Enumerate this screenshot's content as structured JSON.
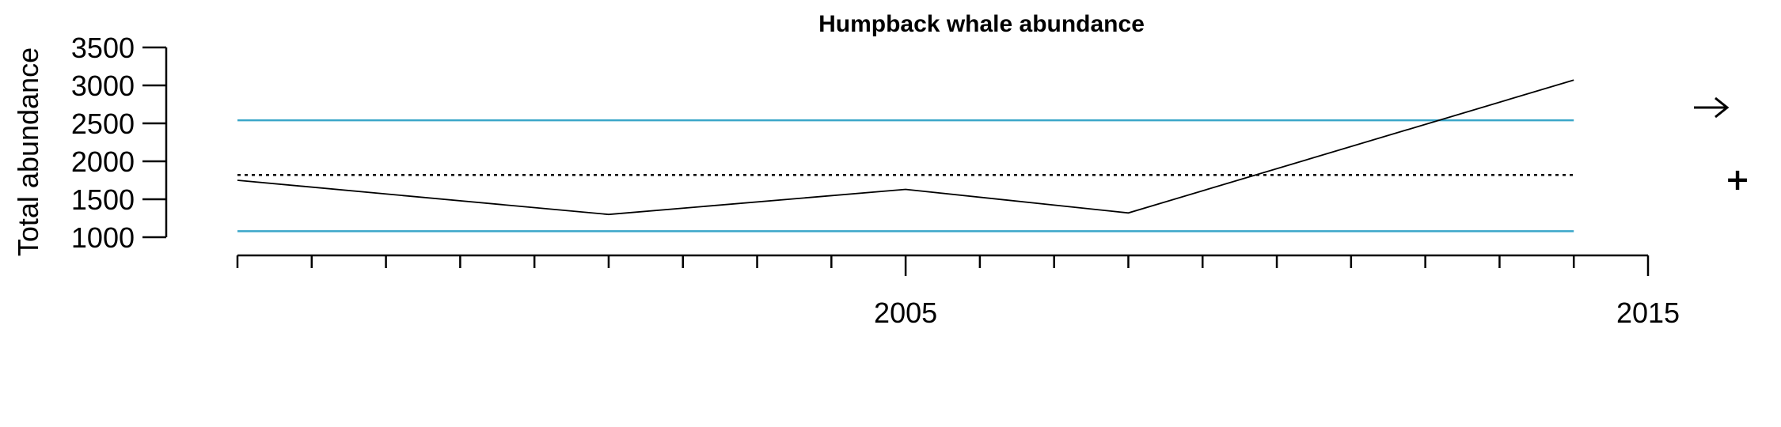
{
  "chart_data": {
    "type": "line",
    "title": "Humpback whale abundance",
    "xlabel": "",
    "ylabel": "Total abundance",
    "x": [
      1996,
      2001,
      2005,
      2008,
      2014
    ],
    "series": [
      {
        "values": [
          1750,
          1300,
          1630,
          1320,
          3070
        ],
        "color": "#000000",
        "style": "solid"
      }
    ],
    "reference_lines": [
      {
        "y": 2540,
        "color": "#3aa6c9",
        "style": "solid"
      },
      {
        "y": 1820,
        "color": "#000000",
        "style": "dotted"
      },
      {
        "y": 1080,
        "color": "#3aa6c9",
        "style": "solid"
      }
    ],
    "xlim": [
      1996,
      2015
    ],
    "ylim": [
      1000,
      3500
    ],
    "y_ticks": [
      1000,
      1500,
      2000,
      2500,
      3000,
      3500
    ],
    "x_minor_ticks": [
      1996,
      1997,
      1998,
      1999,
      2000,
      2001,
      2002,
      2003,
      2004,
      2005,
      2006,
      2007,
      2008,
      2009,
      2010,
      2011,
      2012,
      2013,
      2014,
      2015
    ],
    "x_tick_labels": [
      2005,
      2015
    ],
    "grid": false,
    "status_symbols": {
      "trend": "→",
      "status": "+"
    }
  }
}
